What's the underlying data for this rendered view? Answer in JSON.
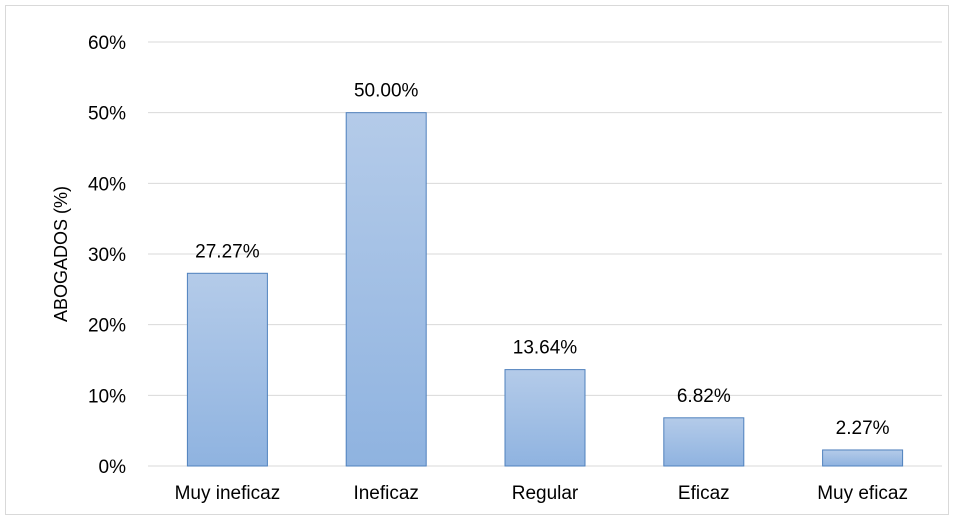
{
  "chart_data": {
    "type": "bar",
    "title": "",
    "xlabel": "",
    "ylabel": "ABOGADOS (%)",
    "categories": [
      "Muy ineficaz",
      "Ineficaz",
      "Regular",
      "Eficaz",
      "Muy eficaz"
    ],
    "values": [
      27.27,
      50.0,
      13.64,
      6.82,
      2.27
    ],
    "data_labels": [
      "27.27%",
      "50.00%",
      "13.64%",
      "6.82%",
      "2.27%"
    ],
    "ylim": [
      0,
      60
    ],
    "yticks": [
      0,
      10,
      20,
      30,
      40,
      50,
      60
    ],
    "ytick_labels": [
      "0%",
      "10%",
      "20%",
      "30%",
      "40%",
      "50%",
      "60%"
    ],
    "grid": true,
    "legend": "none",
    "colors": {
      "bar_top": "#b4cbe9",
      "bar_bottom": "#8fb3e0",
      "bar_border": "#4f81bd",
      "gridline": "#d9d9d9"
    }
  }
}
